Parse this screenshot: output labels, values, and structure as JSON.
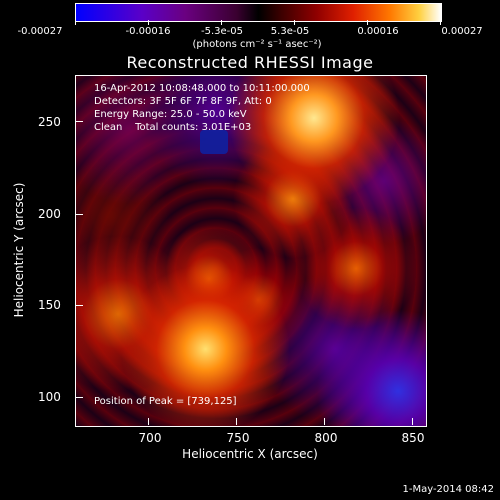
{
  "colorbar": {
    "ticks": [
      "-0.00027",
      "-0.00016",
      "-5.3e-05",
      "5.3e-05",
      "0.00016",
      "0.00027"
    ],
    "units": "(photons cm⁻² s⁻¹ asec⁻²)"
  },
  "title": "Reconstructed RHESSI Image",
  "info": {
    "time_range": "16-Apr-2012 10:08:48.000 to 10:11:00.000",
    "detectors": "Detectors: 3F 5F 6F 7F 8F 9F, Att: 0",
    "energy_range": "Energy Range: 25.0 - 50.0 keV",
    "method_counts": "Clean    Total counts: 3.01E+03",
    "peak_position": "Position of Peak = [739,125]"
  },
  "axes": {
    "xlabel": "Heliocentric X (arcsec)",
    "ylabel": "Heliocentric Y (arcsec)",
    "xticks": [
      "700",
      "750",
      "800",
      "850"
    ],
    "yticks": [
      "250",
      "200",
      "150",
      "100"
    ]
  },
  "footer": {
    "timestamp": "1-May-2014 08:42"
  },
  "colors": {
    "background": "#000000",
    "foreground": "#ffffff"
  }
}
